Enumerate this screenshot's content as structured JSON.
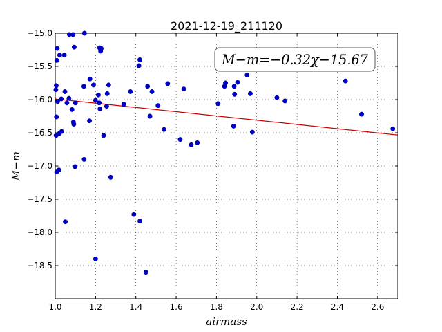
{
  "chart_data": {
    "type": "scatter",
    "title": "2021-12-19_211120",
    "xlabel": "airmass",
    "ylabel": "M−m",
    "xlim": [
      1.0,
      2.7
    ],
    "ylim": [
      -15.0,
      -19.0
    ],
    "y_inverted": true,
    "grid": true,
    "x_ticks": [
      1.0,
      1.2,
      1.4,
      1.6,
      1.8,
      2.0,
      2.2,
      2.4,
      2.6
    ],
    "x_tick_labels": [
      "1.0",
      "1.2",
      "1.4",
      "1.6",
      "1.8",
      "2.0",
      "2.2",
      "2.4",
      "2.6"
    ],
    "y_ticks": [
      -15.0,
      -15.5,
      -16.0,
      -16.5,
      -17.0,
      -17.5,
      -18.0,
      -18.5
    ],
    "y_tick_labels": [
      "−15.0",
      "−15.5",
      "−16.0",
      "−16.5",
      "−17.0",
      "−17.5",
      "−18.0",
      "−18.5"
    ],
    "annotation": "M−m=−0.32χ−15.67",
    "fit": {
      "slope": -0.32,
      "intercept": -15.67,
      "color": "#cc0000"
    },
    "marker_color": "#0000cc",
    "points": [
      {
        "x": 1.003,
        "y": -15.85
      },
      {
        "x": 1.005,
        "y": -15.79
      },
      {
        "x": 1.006,
        "y": -16.26
      },
      {
        "x": 1.004,
        "y": -16.54
      },
      {
        "x": 1.007,
        "y": -17.09
      },
      {
        "x": 1.008,
        "y": -15.41
      },
      {
        "x": 1.01,
        "y": -15.23
      },
      {
        "x": 1.012,
        "y": -16.03
      },
      {
        "x": 1.018,
        "y": -17.06
      },
      {
        "x": 1.02,
        "y": -16.51
      },
      {
        "x": 1.022,
        "y": -15.33
      },
      {
        "x": 1.03,
        "y": -15.99
      },
      {
        "x": 1.032,
        "y": -16.48
      },
      {
        "x": 1.045,
        "y": -15.33
      },
      {
        "x": 1.048,
        "y": -15.88
      },
      {
        "x": 1.05,
        "y": -17.84
      },
      {
        "x": 1.058,
        "y": -16.05
      },
      {
        "x": 1.068,
        "y": -15.98
      },
      {
        "x": 1.07,
        "y": -15.02
      },
      {
        "x": 1.083,
        "y": -16.15
      },
      {
        "x": 1.088,
        "y": -15.02
      },
      {
        "x": 1.09,
        "y": -16.34
      },
      {
        "x": 1.092,
        "y": -16.37
      },
      {
        "x": 1.094,
        "y": -15.21
      },
      {
        "x": 1.098,
        "y": -17.01
      },
      {
        "x": 1.1,
        "y": -16.05
      },
      {
        "x": 1.142,
        "y": -15.8
      },
      {
        "x": 1.143,
        "y": -16.9
      },
      {
        "x": 1.145,
        "y": -15.0
      },
      {
        "x": 1.17,
        "y": -16.32
      },
      {
        "x": 1.172,
        "y": -15.69
      },
      {
        "x": 1.19,
        "y": -15.78
      },
      {
        "x": 1.2,
        "y": -16.01
      },
      {
        "x": 1.2,
        "y": -18.4
      },
      {
        "x": 1.214,
        "y": -15.93
      },
      {
        "x": 1.218,
        "y": -16.05
      },
      {
        "x": 1.22,
        "y": -15.22
      },
      {
        "x": 1.222,
        "y": -16.14
      },
      {
        "x": 1.225,
        "y": -15.27
      },
      {
        "x": 1.228,
        "y": -15.23
      },
      {
        "x": 1.24,
        "y": -16.54
      },
      {
        "x": 1.255,
        "y": -16.1
      },
      {
        "x": 1.258,
        "y": -15.91
      },
      {
        "x": 1.265,
        "y": -15.78
      },
      {
        "x": 1.275,
        "y": -17.17
      },
      {
        "x": 1.34,
        "y": -16.07
      },
      {
        "x": 1.373,
        "y": -15.88
      },
      {
        "x": 1.39,
        "y": -17.73
      },
      {
        "x": 1.415,
        "y": -15.49
      },
      {
        "x": 1.42,
        "y": -17.83
      },
      {
        "x": 1.42,
        "y": -15.4
      },
      {
        "x": 1.45,
        "y": -18.6
      },
      {
        "x": 1.458,
        "y": -15.8
      },
      {
        "x": 1.47,
        "y": -16.25
      },
      {
        "x": 1.48,
        "y": -15.88
      },
      {
        "x": 1.51,
        "y": -16.09
      },
      {
        "x": 1.54,
        "y": -16.45
      },
      {
        "x": 1.558,
        "y": -15.76
      },
      {
        "x": 1.62,
        "y": -16.6
      },
      {
        "x": 1.638,
        "y": -15.84
      },
      {
        "x": 1.675,
        "y": -16.68
      },
      {
        "x": 1.705,
        "y": -16.65
      },
      {
        "x": 1.808,
        "y": -16.06
      },
      {
        "x": 1.84,
        "y": -15.8
      },
      {
        "x": 1.845,
        "y": -15.75
      },
      {
        "x": 1.885,
        "y": -16.4
      },
      {
        "x": 1.888,
        "y": -15.8
      },
      {
        "x": 1.89,
        "y": -15.92
      },
      {
        "x": 1.905,
        "y": -15.74
      },
      {
        "x": 1.952,
        "y": -15.63
      },
      {
        "x": 1.968,
        "y": -15.91
      },
      {
        "x": 1.978,
        "y": -16.49
      },
      {
        "x": 2.1,
        "y": -15.97
      },
      {
        "x": 2.14,
        "y": -16.02
      },
      {
        "x": 2.44,
        "y": -15.72
      },
      {
        "x": 2.52,
        "y": -16.22
      },
      {
        "x": 2.675,
        "y": -16.44
      }
    ]
  }
}
